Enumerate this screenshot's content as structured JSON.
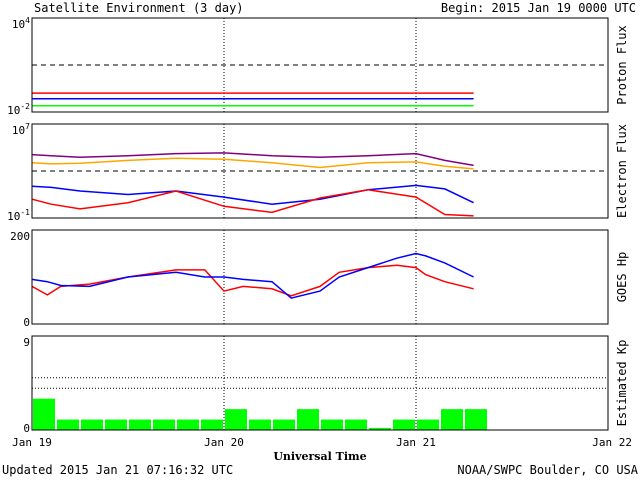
{
  "header": {
    "title": "Satellite Environment (3 day)",
    "begin": "Begin:  2015 Jan 19 0000 UTC"
  },
  "footer": {
    "updated": "Updated 2015 Jan 21 07:16:32 UTC",
    "credit": "NOAA/SWPC Boulder, CO USA"
  },
  "colors": {
    "red": "#ff0000",
    "blue": "#0000ff",
    "green": "#00ff00",
    "purple": "#800080",
    "orange": "#ffa500",
    "kp_bar": "#00ff00"
  },
  "chart_data": [
    {
      "panel": "proton",
      "type": "line",
      "ylabel": "Proton Flux",
      "yscale": "log",
      "ylim": [
        0.01,
        10000
      ],
      "ytick_labels": [
        "10^4",
        "10^-2"
      ],
      "threshold": 10,
      "x": [
        0,
        0.5,
        1,
        1.5,
        2,
        2.3
      ],
      "series": [
        {
          "color": "red",
          "values": [
            0.16,
            0.16,
            0.16,
            0.16,
            0.16,
            0.16
          ]
        },
        {
          "color": "blue",
          "values": [
            0.07,
            0.07,
            0.07,
            0.07,
            0.07,
            0.07
          ]
        },
        {
          "color": "green",
          "values": [
            0.025,
            0.025,
            0.025,
            0.025,
            0.025,
            0.025
          ]
        }
      ]
    },
    {
      "panel": "electron",
      "type": "line",
      "ylabel": "Electron Flux",
      "yscale": "log",
      "ylim": [
        0.1,
        10000000
      ],
      "ytick_labels": [
        "10^7",
        "10^-1"
      ],
      "threshold": 1000,
      "x": [
        0,
        0.1,
        0.25,
        0.5,
        0.75,
        1.0,
        1.25,
        1.5,
        1.75,
        2.0,
        2.15,
        2.3
      ],
      "series": [
        {
          "color": "purple",
          "values": [
            25000,
            20000,
            15000,
            20000,
            30000,
            35000,
            20000,
            15000,
            20000,
            30000,
            8000,
            3000
          ]
        },
        {
          "color": "orange",
          "values": [
            5000,
            4000,
            4500,
            8000,
            12000,
            10000,
            5000,
            2000,
            5000,
            6000,
            2500,
            1500
          ]
        },
        {
          "color": "blue",
          "values": [
            50,
            40,
            20,
            10,
            20,
            6,
            1.5,
            4,
            25,
            60,
            30,
            2
          ]
        },
        {
          "color": "red",
          "values": [
            4,
            1.5,
            0.6,
            2,
            20,
            1,
            0.3,
            5,
            25,
            6,
            0.2,
            0.15
          ]
        }
      ]
    },
    {
      "panel": "hp",
      "type": "line",
      "ylabel": "GOES Hp",
      "ylim": [
        0,
        200
      ],
      "ytick_labels": [
        "200",
        "0"
      ],
      "x": [
        0,
        0.08,
        0.15,
        0.3,
        0.5,
        0.75,
        0.9,
        1.0,
        1.1,
        1.25,
        1.35,
        1.5,
        1.6,
        1.75,
        1.9,
        2.0,
        2.05,
        2.15,
        2.3
      ],
      "series": [
        {
          "color": "red",
          "values": [
            80,
            62,
            80,
            85,
            100,
            115,
            115,
            70,
            80,
            75,
            60,
            80,
            110,
            120,
            125,
            120,
            105,
            90,
            75
          ]
        },
        {
          "color": "blue",
          "values": [
            95,
            90,
            82,
            80,
            100,
            110,
            100,
            100,
            95,
            90,
            55,
            70,
            100,
            120,
            140,
            150,
            145,
            130,
            100
          ]
        }
      ]
    },
    {
      "panel": "kp",
      "type": "bar",
      "ylabel": "Estimated Kp",
      "ylim": [
        0,
        9
      ],
      "ytick_labels": [
        "9",
        "0"
      ],
      "grid_y": [
        5,
        4
      ],
      "bar_width_days": 0.125,
      "values": [
        3,
        1,
        1,
        1,
        1,
        1,
        1,
        1,
        2,
        1,
        1,
        2,
        1,
        1,
        0.2,
        1,
        1,
        2,
        2
      ]
    }
  ],
  "x_axis": {
    "title": "Universal Time",
    "ticks": [
      {
        "x": 0,
        "label": "Jan 19"
      },
      {
        "x": 1,
        "label": "Jan 20"
      },
      {
        "x": 2,
        "label": "Jan 21"
      },
      {
        "x": 3,
        "label": "Jan 22"
      }
    ],
    "range": [
      0,
      3
    ]
  }
}
